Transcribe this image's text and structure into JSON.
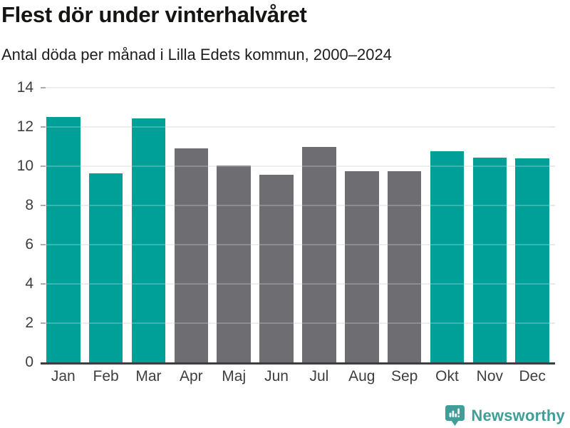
{
  "header": {
    "title": "Flest dör under vinterhalvåret",
    "subtitle": "Antal döda per månad i Lilla Edets kommun, 2000–2024"
  },
  "chart_data": {
    "type": "bar",
    "title": "Flest dör under vinterhalvåret",
    "subtitle": "Antal döda per månad i Lilla Edets kommun, 2000–2024",
    "categories": [
      "Jan",
      "Feb",
      "Mar",
      "Apr",
      "Maj",
      "Jun",
      "Jul",
      "Aug",
      "Sep",
      "Okt",
      "Nov",
      "Dec"
    ],
    "values": [
      12.5,
      9.65,
      12.45,
      10.9,
      10.05,
      9.55,
      11.0,
      9.75,
      9.75,
      10.75,
      10.45,
      10.4
    ],
    "bar_colors": [
      "highlight",
      "highlight",
      "highlight",
      "muted",
      "muted",
      "muted",
      "muted",
      "muted",
      "muted",
      "highlight",
      "highlight",
      "highlight"
    ],
    "xlabel": "",
    "ylabel": "",
    "ylim": [
      0,
      14
    ],
    "yticks": [
      0,
      2,
      4,
      6,
      8,
      10,
      12,
      14
    ],
    "grid": true,
    "legend_position": "none"
  },
  "colors": {
    "highlight": "#00a099",
    "muted": "#6e6d72",
    "grid": "#e9e9e9",
    "tick": "#ababab",
    "axis": "#3c3f42",
    "label": "#3e3e3e",
    "logo": "#3f9e97"
  },
  "branding": {
    "logo_text": "Newsworthy",
    "logo_icon": "bar-chart-speech-bubble-icon"
  }
}
